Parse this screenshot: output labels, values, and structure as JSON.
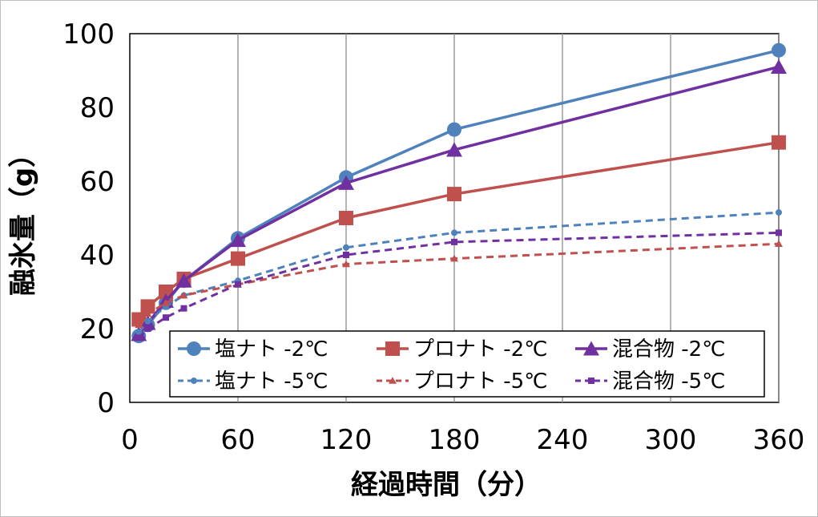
{
  "chart_data": {
    "type": "line",
    "title": "",
    "xlabel": "経過時間（分）",
    "ylabel": "融氷量（g）",
    "xlim": [
      0,
      360
    ],
    "ylim": [
      0,
      100
    ],
    "x_ticks": [
      0,
      60,
      120,
      180,
      240,
      300,
      360
    ],
    "y_ticks": [
      0,
      20,
      40,
      60,
      80,
      100
    ],
    "grid": "vertical",
    "legend_position": "bottom-inside",
    "series": [
      {
        "name": "塩ナト -2℃",
        "color": "#4f81bd",
        "marker": "circle",
        "dashed": false,
        "x": [
          5,
          10,
          20,
          30,
          60,
          120,
          180,
          360
        ],
        "y": [
          18,
          21,
          27,
          33,
          44.5,
          61,
          74,
          95.5
        ]
      },
      {
        "name": "プロナト -2℃",
        "color": "#c0504d",
        "marker": "square",
        "dashed": false,
        "x": [
          5,
          10,
          20,
          30,
          60,
          120,
          180,
          360
        ],
        "y": [
          22.5,
          26,
          30,
          33.5,
          39,
          50,
          56.5,
          70.5
        ]
      },
      {
        "name": "混合物 -2℃",
        "color": "#7030a0",
        "marker": "triangle",
        "dashed": false,
        "x": [
          5,
          10,
          20,
          30,
          60,
          120,
          180,
          360
        ],
        "y": [
          18.5,
          21.5,
          27.5,
          33,
          44,
          59.5,
          68.5,
          91
        ]
      },
      {
        "name": "塩ナト -5℃",
        "color": "#4f81bd",
        "marker": "circle",
        "dashed": true,
        "x": [
          5,
          10,
          20,
          30,
          60,
          120,
          180,
          360
        ],
        "y": [
          19,
          22,
          26,
          29,
          33,
          42,
          46,
          51.5
        ]
      },
      {
        "name": "プロナト -5℃",
        "color": "#c0504d",
        "marker": "triangle",
        "dashed": true,
        "x": [
          5,
          10,
          20,
          30,
          60,
          120,
          180,
          360
        ],
        "y": [
          21,
          24,
          27,
          29,
          32,
          37.5,
          39,
          43
        ]
      },
      {
        "name": "混合物 -5℃",
        "color": "#7030a0",
        "marker": "square",
        "dashed": true,
        "x": [
          5,
          10,
          20,
          30,
          60,
          120,
          180,
          360
        ],
        "y": [
          17.5,
          20,
          23,
          25.5,
          32,
          40,
          43.5,
          46
        ]
      }
    ]
  }
}
